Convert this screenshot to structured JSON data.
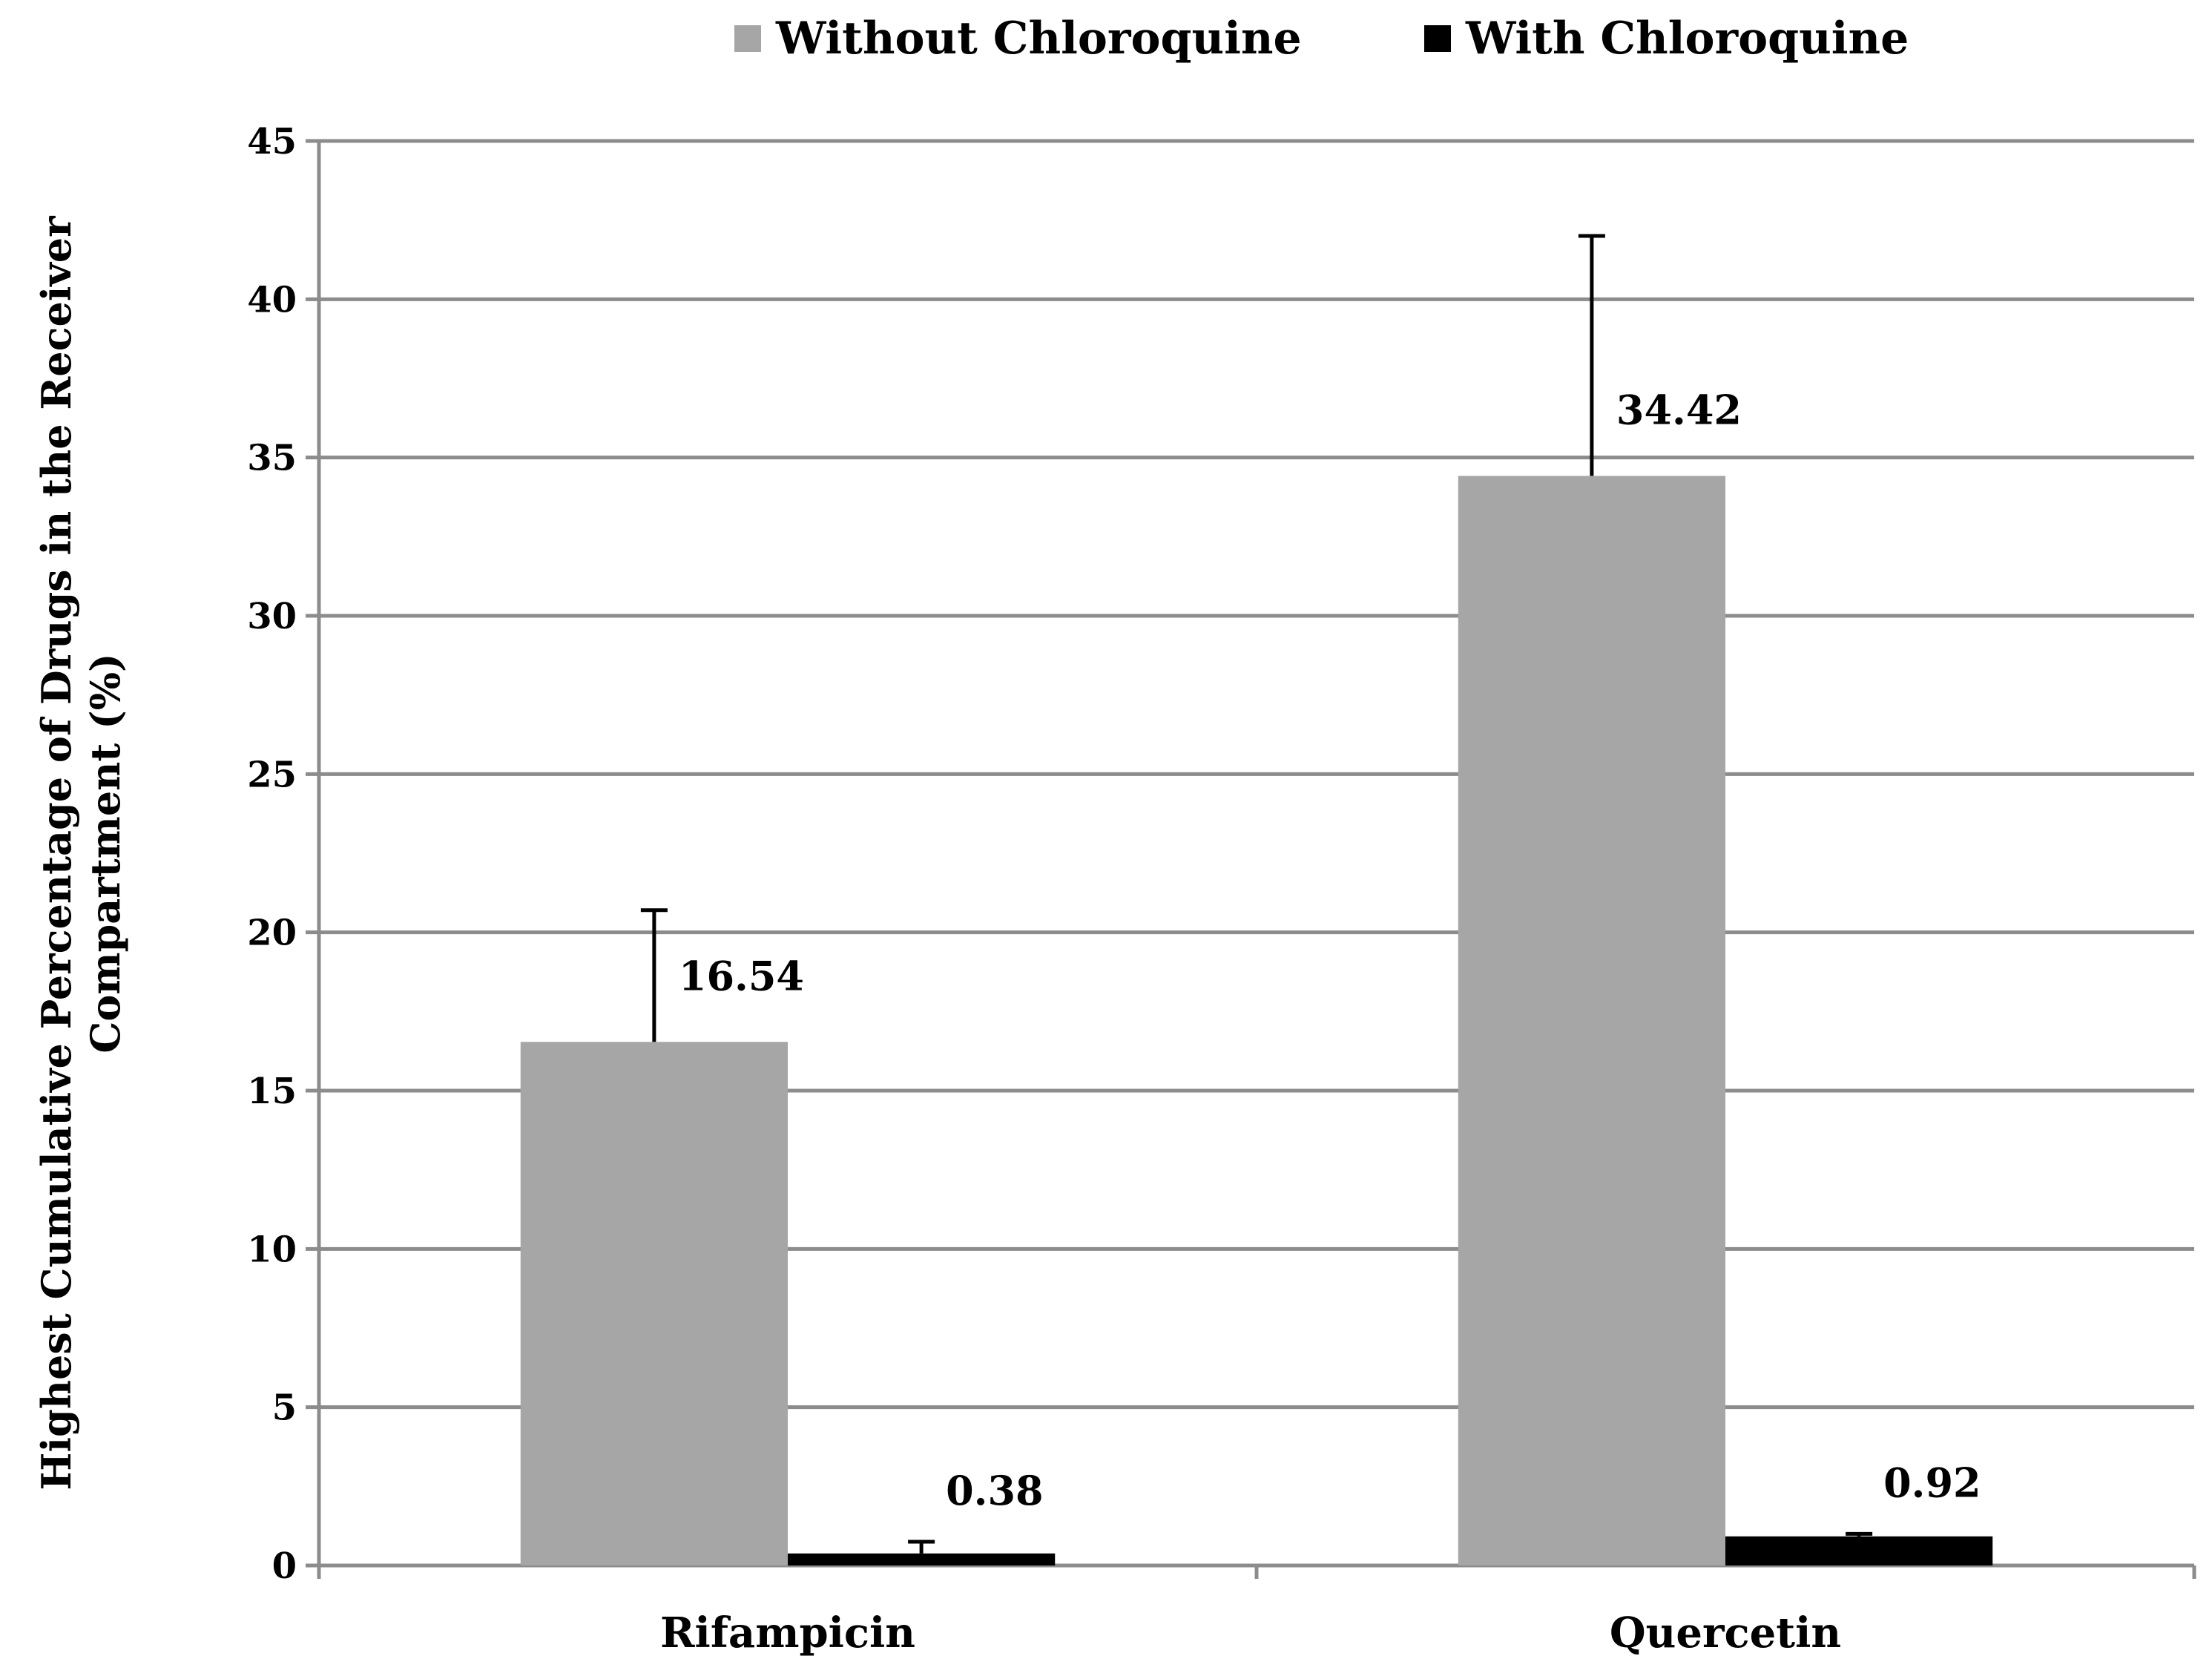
{
  "chart_data": {
    "type": "bar",
    "categories": [
      "Rifampicin",
      "Quercetin"
    ],
    "series": [
      {
        "name": "Without Chloroquine",
        "color": "#a6a6a6",
        "values": [
          16.54,
          34.42
        ],
        "error_upper": [
          20.7,
          42.0
        ],
        "data_labels": [
          "16.54",
          "34.42"
        ]
      },
      {
        "name": "With Chloroquine",
        "color": "#000000",
        "values": [
          0.38,
          0.92
        ],
        "error_upper": [
          0.75,
          1.0
        ],
        "data_labels": [
          "0.38",
          "0.92"
        ]
      }
    ],
    "title": "",
    "xlabel": "",
    "ylabel_lines": [
      "Highest Cumulative Percentage of Drugs in the Receiver",
      "Compartment (%)"
    ],
    "ylim": [
      0,
      45
    ],
    "yticks": [
      0,
      5,
      10,
      15,
      20,
      25,
      30,
      35,
      40,
      45
    ],
    "grid": true,
    "legend_position": "top"
  }
}
